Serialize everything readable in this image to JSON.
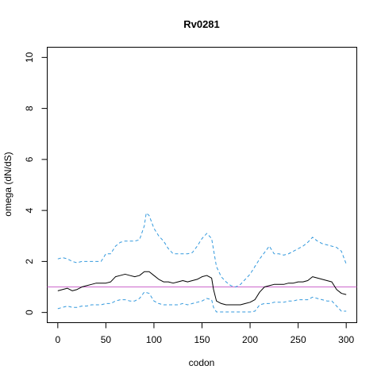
{
  "chart_data": {
    "type": "line",
    "title": "Rv0281",
    "xlabel": "codon",
    "ylabel": "omega (dN/dS)",
    "xlim": [
      -11,
      311
    ],
    "ylim": [
      -0.4,
      10.4
    ],
    "x_ticks": [
      0,
      50,
      100,
      150,
      200,
      250,
      300
    ],
    "y_ticks": [
      0,
      2,
      4,
      6,
      8,
      10
    ],
    "grid": false,
    "reference_line": {
      "y": 1,
      "color": "#cc66cc"
    },
    "series": [
      {
        "role": "estimate",
        "color": "#000000",
        "dash": "solid",
        "x": [
          0,
          5,
          10,
          15,
          20,
          25,
          30,
          35,
          40,
          45,
          50,
          55,
          60,
          65,
          70,
          75,
          80,
          85,
          90,
          95,
          100,
          105,
          110,
          115,
          120,
          125,
          130,
          135,
          140,
          145,
          150,
          155,
          160,
          162,
          165,
          170,
          175,
          180,
          185,
          190,
          195,
          200,
          205,
          210,
          215,
          220,
          225,
          230,
          235,
          240,
          245,
          250,
          255,
          260,
          265,
          270,
          275,
          280,
          285,
          290,
          295,
          300
        ],
        "y": [
          0.85,
          0.9,
          0.95,
          0.85,
          0.9,
          1.0,
          1.05,
          1.1,
          1.15,
          1.15,
          1.15,
          1.2,
          1.4,
          1.45,
          1.5,
          1.45,
          1.4,
          1.45,
          1.6,
          1.6,
          1.45,
          1.3,
          1.2,
          1.2,
          1.15,
          1.2,
          1.25,
          1.2,
          1.25,
          1.3,
          1.4,
          1.45,
          1.35,
          0.9,
          0.45,
          0.35,
          0.3,
          0.3,
          0.3,
          0.3,
          0.35,
          0.4,
          0.5,
          0.8,
          1.0,
          1.05,
          1.1,
          1.1,
          1.1,
          1.15,
          1.15,
          1.2,
          1.2,
          1.25,
          1.4,
          1.35,
          1.3,
          1.25,
          1.2,
          0.9,
          0.75,
          0.7
        ]
      },
      {
        "role": "upper bound",
        "color": "#3399dd",
        "dash": "dashed",
        "x": [
          0,
          5,
          10,
          15,
          20,
          25,
          30,
          35,
          40,
          45,
          50,
          55,
          60,
          65,
          70,
          75,
          80,
          85,
          90,
          92,
          95,
          100,
          105,
          110,
          115,
          120,
          125,
          130,
          135,
          140,
          145,
          150,
          155,
          160,
          165,
          170,
          175,
          180,
          185,
          190,
          195,
          200,
          205,
          210,
          215,
          220,
          225,
          230,
          235,
          240,
          245,
          250,
          255,
          260,
          265,
          270,
          275,
          280,
          285,
          290,
          295,
          300
        ],
        "y": [
          2.1,
          2.15,
          2.1,
          2.0,
          1.95,
          2.0,
          2.0,
          2.0,
          2.0,
          2.0,
          2.3,
          2.3,
          2.6,
          2.75,
          2.8,
          2.8,
          2.8,
          2.85,
          3.4,
          3.9,
          3.8,
          3.3,
          3.0,
          2.8,
          2.5,
          2.3,
          2.3,
          2.3,
          2.3,
          2.35,
          2.6,
          2.9,
          3.1,
          2.9,
          1.8,
          1.4,
          1.2,
          1.05,
          1.0,
          1.1,
          1.3,
          1.5,
          1.8,
          2.1,
          2.35,
          2.6,
          2.3,
          2.3,
          2.25,
          2.3,
          2.4,
          2.5,
          2.6,
          2.75,
          2.95,
          2.8,
          2.7,
          2.65,
          2.6,
          2.55,
          2.4,
          1.9
        ]
      },
      {
        "role": "lower bound",
        "color": "#3399dd",
        "dash": "dashed",
        "x": [
          0,
          5,
          10,
          15,
          20,
          25,
          30,
          35,
          40,
          45,
          50,
          55,
          60,
          65,
          70,
          75,
          80,
          85,
          90,
          95,
          100,
          105,
          110,
          115,
          120,
          125,
          130,
          135,
          140,
          145,
          150,
          155,
          160,
          162,
          165,
          170,
          175,
          180,
          185,
          190,
          195,
          200,
          205,
          210,
          215,
          220,
          225,
          230,
          235,
          240,
          245,
          250,
          255,
          260,
          265,
          270,
          275,
          280,
          285,
          290,
          295,
          300
        ],
        "y": [
          0.15,
          0.2,
          0.25,
          0.2,
          0.2,
          0.25,
          0.25,
          0.3,
          0.3,
          0.3,
          0.35,
          0.35,
          0.45,
          0.5,
          0.5,
          0.45,
          0.45,
          0.55,
          0.8,
          0.75,
          0.45,
          0.35,
          0.3,
          0.3,
          0.3,
          0.3,
          0.35,
          0.3,
          0.35,
          0.4,
          0.45,
          0.55,
          0.5,
          0.2,
          0.02,
          0.02,
          0.02,
          0.02,
          0.02,
          0.02,
          0.02,
          0.02,
          0.05,
          0.3,
          0.35,
          0.35,
          0.4,
          0.4,
          0.4,
          0.45,
          0.45,
          0.5,
          0.5,
          0.5,
          0.6,
          0.55,
          0.5,
          0.45,
          0.45,
          0.25,
          0.05,
          0.05
        ]
      }
    ]
  }
}
